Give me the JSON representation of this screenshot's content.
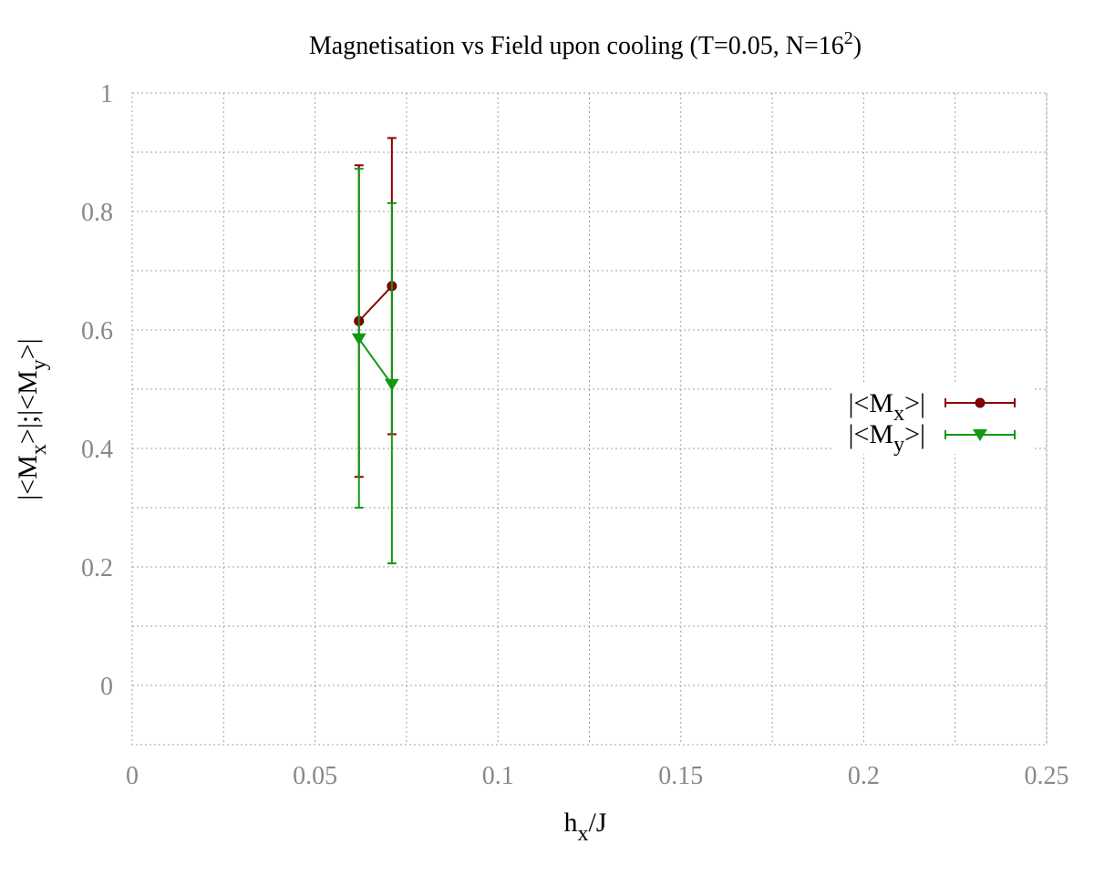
{
  "chart_data": {
    "type": "line",
    "title": "Magnetisation vs Field upon cooling (T=0.05, N=16",
    "title_sup": "2",
    "title_end": ")",
    "xlabel": "h",
    "xlabel_sub": "x",
    "xlabel_end": "/J",
    "ylabel_parts": [
      "|<M",
      "x",
      ">|;|<M",
      "y",
      ">|"
    ],
    "xlim": [
      0,
      0.25
    ],
    "ylim": [
      -0.1,
      1.0
    ],
    "x_ticks": [
      "0",
      "0.05",
      "0.1",
      "0.15",
      "0.2",
      "0.25"
    ],
    "x_tick_values": [
      0,
      0.05,
      0.1,
      0.15,
      0.2,
      0.25
    ],
    "y_ticks": [
      "0",
      "0.2",
      "0.4",
      "0.6",
      "0.8",
      "1"
    ],
    "y_tick_values": [
      0,
      0.2,
      0.4,
      0.6,
      0.8,
      1.0
    ],
    "grid": true,
    "legend_position": "right",
    "series": [
      {
        "name_parts": [
          "|<M",
          "x",
          ">|"
        ],
        "color": "#8b0000",
        "marker": "circle",
        "points": [
          {
            "x": 0.062,
            "y": 0.615,
            "err_low": 0.352,
            "err_high": 0.878
          },
          {
            "x": 0.071,
            "y": 0.674,
            "err_low": 0.424,
            "err_high": 0.924
          }
        ]
      },
      {
        "name_parts": [
          "|<M",
          "y",
          ">|"
        ],
        "color": "#119911",
        "marker": "triangle-down",
        "points": [
          {
            "x": 0.062,
            "y": 0.585,
            "err_low": 0.3,
            "err_high": 0.872
          },
          {
            "x": 0.071,
            "y": 0.508,
            "err_low": 0.206,
            "err_high": 0.814
          }
        ]
      }
    ]
  }
}
